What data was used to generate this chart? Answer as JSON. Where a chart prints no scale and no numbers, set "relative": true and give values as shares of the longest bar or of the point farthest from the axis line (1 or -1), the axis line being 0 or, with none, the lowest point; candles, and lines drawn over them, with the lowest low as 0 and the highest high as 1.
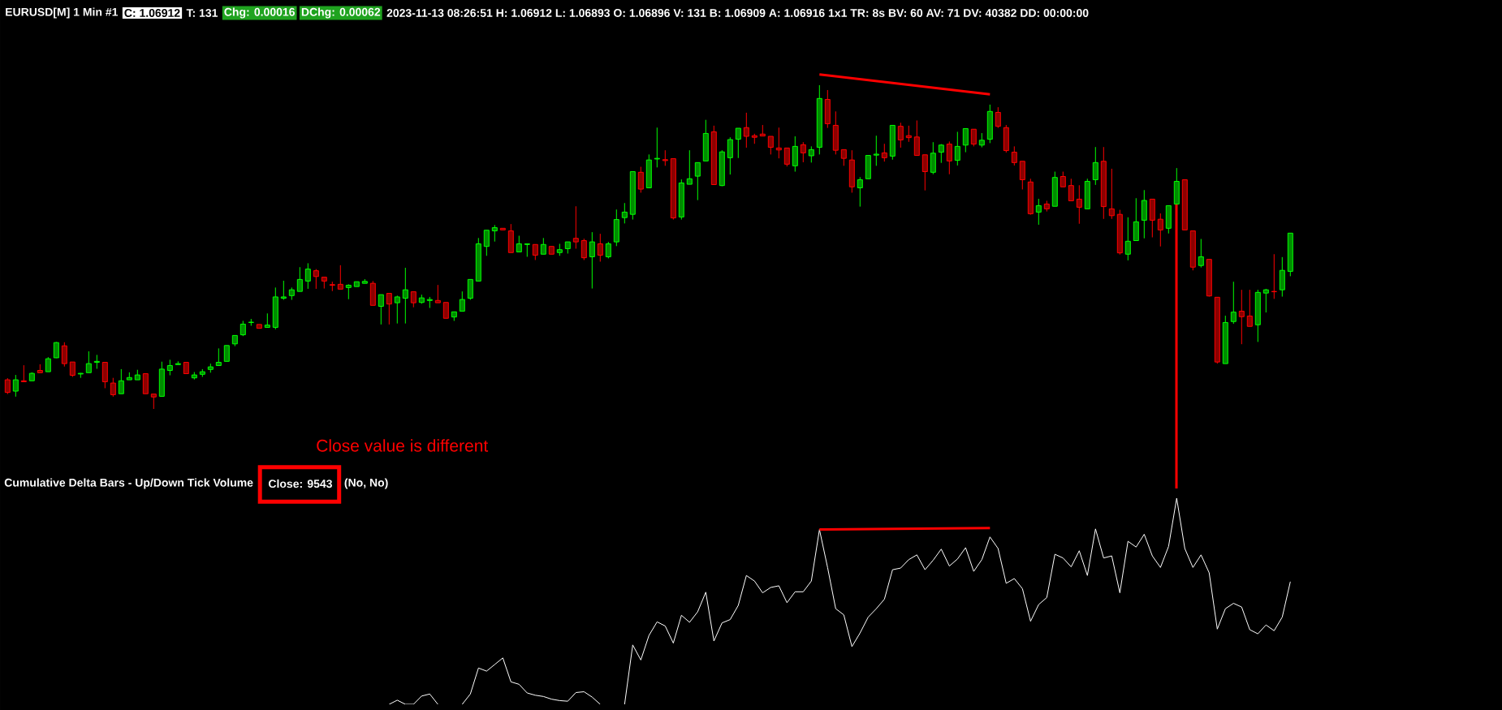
{
  "chart_data": [
    {
      "type": "candlestick",
      "title": "EURUSD[M] 1 Min #1",
      "relative": true,
      "annotations": [
        "C: 1.06912",
        "T: 131",
        "Chg: 0.00016",
        "DChg: 0.00062",
        "2023-11-13 08:26:51 H: 1.06912 L: 1.06893 O: 1.06896 V: 131 B: 1.06909 A: 1.06916 1x1 TR: 8s BV: 60 AV: 71 DV: 40382 DD: 00:00:00"
      ],
      "categories": [
        null,
        null,
        null,
        null,
        null,
        null,
        null,
        null,
        null,
        null,
        null,
        null,
        null,
        null,
        null,
        null,
        null,
        null,
        null,
        null,
        null,
        null,
        null,
        null,
        null,
        null,
        null,
        null,
        null,
        null,
        null,
        null,
        null,
        null,
        null,
        null,
        null,
        null,
        null,
        null,
        null,
        null,
        null,
        null,
        null,
        null,
        null,
        null,
        null,
        null,
        null,
        null,
        null,
        null,
        null,
        null,
        null,
        null,
        null,
        null,
        null,
        null,
        null,
        null,
        null,
        null,
        null,
        null,
        null,
        null,
        null,
        null,
        null,
        null,
        null,
        null,
        null,
        null,
        null,
        null,
        null,
        null,
        null,
        null,
        null,
        null,
        null,
        null,
        null,
        null,
        null,
        null,
        null,
        null,
        null,
        null,
        null,
        null,
        null,
        null,
        null,
        null,
        null,
        null,
        null,
        null,
        null,
        null,
        null,
        null,
        null,
        null,
        null,
        null,
        null,
        null,
        null,
        null,
        null,
        null,
        null,
        null,
        null,
        null,
        null,
        null,
        null,
        null,
        null,
        null,
        null,
        null,
        null,
        null,
        null,
        null,
        null,
        null,
        null,
        null,
        null,
        null,
        null,
        null,
        null,
        null,
        null,
        null,
        null,
        null,
        null,
        null,
        null,
        null,
        null,
        null,
        null,
        null,
        null
      ],
      "ohlc": [
        [
          0.09,
          0.095,
          0.046,
          0.051
        ],
        [
          0.055,
          0.105,
          0.038,
          0.09
        ],
        [
          0.087,
          0.135,
          0.084,
          0.084
        ],
        [
          0.087,
          0.113,
          0.087,
          0.11
        ],
        [
          0.119,
          0.138,
          0.112,
          0.112
        ],
        [
          0.115,
          0.16,
          0.115,
          0.155
        ],
        [
          0.158,
          0.207,
          0.157,
          0.205
        ],
        [
          0.195,
          0.206,
          0.131,
          0.14
        ],
        [
          0.145,
          0.145,
          0.099,
          0.104
        ],
        [
          0.108,
          0.111,
          0.096,
          0.11
        ],
        [
          0.112,
          0.178,
          0.112,
          0.14
        ],
        [
          0.144,
          0.167,
          0.124,
          0.147
        ],
        [
          0.144,
          0.144,
          0.064,
          0.084
        ],
        [
          0.08,
          0.096,
          0.038,
          0.044
        ],
        [
          0.047,
          0.123,
          0.047,
          0.087
        ],
        [
          0.09,
          0.113,
          0.09,
          0.097
        ],
        [
          0.09,
          0.121,
          0.09,
          0.105
        ],
        [
          0.109,
          0.109,
          0.047,
          0.047
        ],
        [
          0.046,
          0.046,
          0,
          0.037
        ],
        [
          0.039,
          0.146,
          0.039,
          0.123
        ],
        [
          0.119,
          0.152,
          0.104,
          0.134
        ],
        [
          0.137,
          0.147,
          0.137,
          0.14
        ],
        [
          0.144,
          0.144,
          0.109,
          0.109
        ],
        [
          0.096,
          0.114,
          0.091,
          0.105
        ],
        [
          0.107,
          0.123,
          0.099,
          0.115
        ],
        [
          0.122,
          0.14,
          0.112,
          0.13
        ],
        [
          0.134,
          0.187,
          0.134,
          0.144
        ],
        [
          0.147,
          0.196,
          0.147,
          0.196
        ],
        [
          0.201,
          0.227,
          0.194,
          0.227
        ],
        [
          0.229,
          0.272,
          0.225,
          0.262
        ],
        [
          0.267,
          0.278,
          0.257,
          0.268
        ],
        [
          0.261,
          0.261,
          0.249,
          0.249
        ],
        [
          0.252,
          0.295,
          0.252,
          0.259
        ],
        [
          0.252,
          0.375,
          0.246,
          0.346
        ],
        [
          0.342,
          0.396,
          0.337,
          0.346
        ],
        [
          0.35,
          0.375,
          0.337,
          0.368
        ],
        [
          0.363,
          0.438,
          0.363,
          0.4
        ],
        [
          0.395,
          0.45,
          0.371,
          0.432
        ],
        [
          0.427,
          0.432,
          0.371,
          0.409
        ],
        [
          0.407,
          0.407,
          0.372,
          0.395
        ],
        [
          0.384,
          0.393,
          0.364,
          0.382
        ],
        [
          0.385,
          0.444,
          0.37,
          0.37
        ],
        [
          0.375,
          0.385,
          0.339,
          0.382
        ],
        [
          0.378,
          0.393,
          0.378,
          0.393
        ],
        [
          0.388,
          0.401,
          0.388,
          0.394
        ],
        [
          0.388,
          0.395,
          0.32,
          0.32
        ],
        [
          0.317,
          0.353,
          0.261,
          0.353
        ],
        [
          0.357,
          0.357,
          0.261,
          0.324
        ],
        [
          0.328,
          0.35,
          0.264,
          0.346
        ],
        [
          0.342,
          0.436,
          0.264,
          0.368
        ],
        [
          0.362,
          0.362,
          0.314,
          0.328
        ],
        [
          0.329,
          0.353,
          0.325,
          0.343
        ],
        [
          0.335,
          0.346,
          0.312,
          0.338
        ],
        [
          0.335,
          0.383,
          0.328,
          0.328
        ],
        [
          0.329,
          0.329,
          0.28,
          0.28
        ],
        [
          0.284,
          0.3,
          0.272,
          0.3
        ],
        [
          0.302,
          0.363,
          0.302,
          0.338
        ],
        [
          0.342,
          0.4,
          0.337,
          0.4
        ],
        [
          0.395,
          0.528,
          0.395,
          0.51
        ],
        [
          0.502,
          0.552,
          0.473,
          0.552
        ],
        [
          0.55,
          0.568,
          0.517,
          0.56
        ],
        [
          0.558,
          0.558,
          0.553,
          0.553
        ],
        [
          0.55,
          0.571,
          0.483,
          0.483
        ],
        [
          0.485,
          0.535,
          0.485,
          0.51
        ],
        [
          0.508,
          0.51,
          0.47,
          0.51
        ],
        [
          0.508,
          0.508,
          0.46,
          0.475
        ],
        [
          0.478,
          0.528,
          0.478,
          0.508
        ],
        [
          0.502,
          0.502,
          0.478,
          0.478
        ],
        [
          0.483,
          0.51,
          0.473,
          0.492
        ],
        [
          0.495,
          0.516,
          0.48,
          0.516
        ],
        [
          0.527,
          0.626,
          0.495,
          0.516
        ],
        [
          0.52,
          0.526,
          0.46,
          0.467
        ],
        [
          0.47,
          0.546,
          0.372,
          0.516
        ],
        [
          0.51,
          0.541,
          0.455,
          0.475
        ],
        [
          0.47,
          0.516,
          0.465,
          0.51
        ],
        [
          0.516,
          0.616,
          0.503,
          0.585
        ],
        [
          0.591,
          0.636,
          0.573,
          0.608
        ],
        [
          0.601,
          0.733,
          0.585,
          0.733
        ],
        [
          0.731,
          0.748,
          0.668,
          0.679
        ],
        [
          0.683,
          0.786,
          0.683,
          0.769
        ],
        [
          0.772,
          0.869,
          0.746,
          0.774
        ],
        [
          0.77,
          0.799,
          0.751,
          0.767
        ],
        [
          0.773,
          0.773,
          0.585,
          0.59
        ],
        [
          0.593,
          0.709,
          0.585,
          0.698
        ],
        [
          0.694,
          0.799,
          0.694,
          0.711
        ],
        [
          0.719,
          0.761,
          0.645,
          0.761
        ],
        [
          0.766,
          0.893,
          0.766,
          0.851
        ],
        [
          0.856,
          0.875,
          0.693,
          0.693
        ],
        [
          0.69,
          0.799,
          0.688,
          0.794
        ],
        [
          0.776,
          0.839,
          0.724,
          0.832
        ],
        [
          0.833,
          0.867,
          0.775,
          0.867
        ],
        [
          0.869,
          0.915,
          0.807,
          0.842
        ],
        [
          0.844,
          0.85,
          0.819,
          0.839
        ],
        [
          0.849,
          0.877,
          0.843,
          0.843
        ],
        [
          0.842,
          0.842,
          0.786,
          0.808
        ],
        [
          0.806,
          0.869,
          0.774,
          0.8
        ],
        [
          0.806,
          0.806,
          0.749,
          0.756
        ],
        [
          0.751,
          0.842,
          0.733,
          0.811
        ],
        [
          0.816,
          0.824,
          0.762,
          0.791
        ],
        [
          0.782,
          0.811,
          0.761,
          0.801
        ],
        [
          0.808,
          1,
          0.786,
          0.959
        ],
        [
          0.956,
          0.985,
          0.868,
          0.881
        ],
        [
          0.876,
          0.919,
          0.786,
          0.799
        ],
        [
          0.801,
          0.801,
          0.751,
          0.774
        ],
        [
          0.769,
          0.799,
          0.668,
          0.686
        ],
        [
          0.683,
          0.716,
          0.625,
          0.708
        ],
        [
          0.711,
          0.783,
          0.711,
          0.783
        ],
        [
          0.784,
          0.844,
          0.751,
          0.787
        ],
        [
          0.791,
          0.819,
          0.764,
          0.776
        ],
        [
          0.781,
          0.876,
          0.77,
          0.876
        ],
        [
          0.873,
          0.884,
          0.807,
          0.831
        ],
        [
          0.844,
          0.875,
          0.825,
          0.838
        ],
        [
          0.84,
          0.891,
          0.783,
          0.783
        ],
        [
          0.785,
          0.785,
          0.675,
          0.733
        ],
        [
          0.731,
          0.824,
          0.725,
          0.79
        ],
        [
          0.793,
          0.818,
          0.76,
          0.815
        ],
        [
          0.818,
          0.826,
          0.725,
          0.766
        ],
        [
          0.768,
          0.856,
          0.752,
          0.811
        ],
        [
          0.815,
          0.866,
          0.793,
          0.866
        ],
        [
          0.864,
          0.864,
          0.811,
          0.818
        ],
        [
          0.815,
          0.852,
          0.808,
          0.83
        ],
        [
          0.833,
          0.94,
          0.821,
          0.919
        ],
        [
          0.916,
          0.932,
          0.868,
          0.873
        ],
        [
          0.869,
          0.877,
          0.792,
          0.798
        ],
        [
          0.793,
          0.811,
          0.752,
          0.761
        ],
        [
          0.765,
          0.765,
          0.678,
          0.708
        ],
        [
          0.701,
          0.711,
          0.6,
          0.603
        ],
        [
          0.608,
          0.649,
          0.569,
          0.628
        ],
        [
          0.633,
          0.643,
          0.61,
          0.618
        ],
        [
          0.626,
          0.733,
          0.626,
          0.715
        ],
        [
          0.718,
          0.733,
          0.686,
          0.686
        ],
        [
          0.69,
          0.711,
          0.643,
          0.643
        ],
        [
          0.648,
          0.691,
          0.572,
          0.623
        ],
        [
          0.618,
          0.711,
          0.618,
          0.703
        ],
        [
          0.708,
          0.809,
          0.692,
          0.761
        ],
        [
          0.765,
          0.809,
          0.587,
          0.625
        ],
        [
          0.618,
          0.742,
          0.587,
          0.597
        ],
        [
          0.601,
          0.615,
          0.477,
          0.482
        ],
        [
          0.478,
          0.592,
          0.459,
          0.518
        ],
        [
          0.52,
          0.651,
          0.52,
          0.578
        ],
        [
          0.583,
          0.676,
          0.527,
          0.644
        ],
        [
          0.648,
          0.648,
          0.53,
          0.583
        ],
        [
          0.586,
          0.604,
          0.502,
          0.553
        ],
        [
          0.558,
          0.628,
          0.542,
          0.628
        ],
        [
          0.633,
          0.744,
          0.633,
          0.703
        ],
        [
          0.708,
          0.708,
          0.553,
          0.553
        ],
        [
          0.55,
          0.55,
          0.428,
          0.438
        ],
        [
          0.443,
          0.525,
          0.437,
          0.47
        ],
        [
          0.462,
          0.462,
          0.347,
          0.349
        ],
        [
          0.345,
          0.345,
          0.14,
          0.145
        ],
        [
          0.14,
          0.288,
          0.14,
          0.267
        ],
        [
          0.27,
          0.393,
          0.263,
          0.299
        ],
        [
          0.302,
          0.368,
          0.2,
          0.285
        ],
        [
          0.287,
          0.368,
          0.255,
          0.255
        ],
        [
          0.26,
          0.368,
          0.207,
          0.36
        ],
        [
          0.358,
          0.371,
          0.298,
          0.368
        ],
        [
          0.363,
          0.478,
          0.34,
          0.362
        ],
        [
          0.368,
          0.469,
          0.347,
          0.428
        ],
        [
          0.425,
          0.543,
          0.41,
          0.543
        ]
      ],
      "colors": [
        "#ff0000",
        "#00ff00",
        "#ff0000",
        "#00ff00",
        "#ff0000",
        "#00ff00",
        "#00ff00",
        "#ff0000",
        "#ff0000",
        "#00ff00",
        "#00ff00",
        "#00ff00",
        "#ff0000",
        "#ff0000",
        "#00ff00",
        "#00ff00",
        "#00ff00",
        "#ff0000",
        "#ff0000",
        "#00ff00",
        "#00ff00",
        "#00ff00",
        "#ff0000",
        "#00ff00",
        "#00ff00",
        "#00ff00",
        "#00ff00",
        "#00ff00",
        "#00ff00",
        "#00ff00",
        "#00ff00",
        "#ff0000",
        "#00ff00",
        "#00ff00",
        "#00ff00",
        "#00ff00",
        "#00ff00",
        "#00ff00",
        "#ff0000",
        "#ff0000",
        "#ff0000",
        "#ff0000",
        "#00ff00",
        "#00ff00",
        "#00ff00",
        "#ff0000",
        "#00ff00",
        "#ff0000",
        "#00ff00",
        "#00ff00",
        "#ff0000",
        "#00ff00",
        "#00ff00",
        "#ff0000",
        "#ff0000",
        "#00ff00",
        "#00ff00",
        "#00ff00",
        "#00ff00",
        "#00ff00",
        "#00ff00",
        "#ff0000",
        "#ff0000",
        "#00ff00",
        "#00ff00",
        "#ff0000",
        "#00ff00",
        "#ff0000",
        "#00ff00",
        "#00ff00",
        "#ff0000",
        "#ff0000",
        "#00ff00",
        "#ff0000",
        "#00ff00",
        "#00ff00",
        "#00ff00",
        "#00ff00",
        "#ff0000",
        "#00ff00",
        "#00ff00",
        "#ff0000",
        "#ff0000",
        "#00ff00",
        "#00ff00",
        "#00ff00",
        "#00ff00",
        "#ff0000",
        "#00ff00",
        "#00ff00",
        "#00ff00",
        "#ff0000",
        "#ff0000",
        "#ff0000",
        "#ff0000",
        "#ff0000",
        "#ff0000",
        "#00ff00",
        "#ff0000",
        "#00ff00",
        "#00ff00",
        "#ff0000",
        "#ff0000",
        "#ff0000",
        "#ff0000",
        "#00ff00",
        "#00ff00",
        "#00ff00",
        "#ff0000",
        "#00ff00",
        "#ff0000",
        "#ff0000",
        "#ff0000",
        "#ff0000",
        "#00ff00",
        "#00ff00",
        "#ff0000",
        "#00ff00",
        "#00ff00",
        "#ff0000",
        "#00ff00",
        "#00ff00",
        "#ff0000",
        "#ff0000",
        "#ff0000",
        "#ff0000",
        "#ff0000",
        "#00ff00",
        "#ff0000",
        "#00ff00",
        "#ff0000",
        "#ff0000",
        "#ff0000",
        "#00ff00",
        "#00ff00",
        "#ff0000",
        "#ff0000",
        "#ff0000",
        "#00ff00",
        "#00ff00",
        "#00ff00",
        "#ff0000",
        "#ff0000",
        "#00ff00",
        "#00ff00",
        "#ff0000",
        "#ff0000",
        "#00ff00",
        "#ff0000",
        "#ff0000",
        "#00ff00",
        "#00ff00",
        "#ff0000",
        "#ff0000",
        "#00ff00",
        "#00ff00",
        "#ff0000",
        "#00ff00",
        "#00ff00"
      ],
      "series": [
        {
          "type": "line",
          "color": "#ff0000",
          "values": [
            null,
            null,
            null,
            null,
            null,
            null,
            null,
            null,
            null,
            null,
            null,
            null,
            null,
            null,
            null,
            null,
            null,
            null,
            null,
            null,
            null,
            null,
            null,
            null,
            null,
            null,
            null,
            null,
            null,
            null,
            null,
            null,
            null,
            null,
            null,
            null,
            null,
            null,
            null,
            null,
            null,
            null,
            null,
            null,
            null,
            null,
            null,
            null,
            null,
            null,
            null,
            null,
            null,
            null,
            null,
            null,
            null,
            null,
            null,
            null,
            null,
            null,
            null,
            null,
            null,
            null,
            null,
            null,
            null,
            null,
            null,
            null,
            null,
            null,
            null,
            null,
            null,
            null,
            null,
            null,
            null,
            null,
            null,
            null,
            null,
            null,
            null,
            null,
            null,
            null,
            null,
            null,
            null,
            null,
            null,
            null,
            null,
            null,
            null,
            null,
            1.033,
            null,
            null,
            null,
            null,
            null,
            null,
            null,
            null,
            null,
            null,
            null,
            null,
            null,
            null,
            null,
            null,
            null,
            null,
            null,
            null,
            0.972,
            null,
            null,
            null,
            null,
            null,
            null,
            null,
            null,
            null,
            null,
            null,
            null,
            null,
            null,
            null,
            null,
            null,
            null,
            null,
            null,
            null,
            null,
            null,
            null,
            null,
            null,
            null,
            null,
            null,
            null,
            null,
            null,
            null,
            null,
            null,
            null,
            null
          ]
        }
      ]
    },
    {
      "type": "line",
      "title": "Cumulative Delta Bars - Up/Down Tick Volume",
      "relative": true,
      "annotations": [
        "Close: 9543",
        "(No, No)",
        "Close value is different"
      ],
      "categories": [
        null,
        null,
        null,
        null,
        null,
        null,
        null,
        null,
        null,
        null,
        null,
        null,
        null,
        null,
        null,
        null,
        null,
        null,
        null,
        null,
        null,
        null,
        null,
        null,
        null,
        null,
        null,
        null,
        null,
        null,
        null,
        null,
        null,
        null,
        null,
        null,
        null,
        null,
        null,
        null,
        null,
        null,
        null,
        null,
        null,
        null,
        null,
        null,
        null,
        null,
        null,
        null,
        null,
        null,
        null,
        null,
        null,
        null,
        null,
        null,
        null,
        null,
        null,
        null,
        null,
        null,
        null,
        null,
        null,
        null,
        null,
        null,
        null,
        null,
        null,
        null,
        null,
        null,
        null,
        null,
        null,
        null,
        null,
        null,
        null,
        null,
        null,
        null,
        null,
        null,
        null,
        null,
        null,
        null,
        null,
        null,
        null,
        null,
        null,
        null,
        null,
        null,
        null,
        null,
        null,
        null,
        null,
        null,
        null,
        null,
        null,
        null,
        null,
        null,
        null,
        null,
        null,
        null,
        null,
        null,
        null,
        null,
        null,
        null,
        null,
        null,
        null,
        null,
        null,
        null,
        null,
        null,
        null,
        null,
        null,
        null,
        null,
        null,
        null,
        null,
        null,
        null,
        null,
        null,
        null,
        null,
        null,
        null,
        null,
        null,
        null,
        null,
        null,
        null,
        null,
        null,
        null,
        null,
        null
      ],
      "series": [
        {
          "color": "#ffffff",
          "values": [
            null,
            null,
            null,
            null,
            null,
            null,
            null,
            null,
            null,
            null,
            null,
            null,
            null,
            null,
            null,
            null,
            null,
            null,
            null,
            null,
            null,
            null,
            null,
            null,
            null,
            null,
            null,
            null,
            null,
            null,
            null,
            null,
            null,
            null,
            null,
            null,
            null,
            null,
            null,
            null,
            null,
            null,
            null,
            null,
            null,
            null,
            null,
            0,
            0.02,
            0,
            0,
            0.04,
            0.05,
            0,
            null,
            null,
            0,
            0.05,
            0.176,
            0.161,
            0.193,
            0.225,
            0.109,
            0.097,
            0.055,
            0.044,
            0.038,
            0.025,
            0.018,
            0.015,
            0.057,
            0.061,
            0.035,
            0,
            null,
            null,
            0,
            0.288,
            0.215,
            0.334,
            0.4,
            0.38,
            0.297,
            0.432,
            0.398,
            0.449,
            0.544,
            0.307,
            0.395,
            0.411,
            0.48,
            0.625,
            0.598,
            0.541,
            0.567,
            0.575,
            0.493,
            0.546,
            0.546,
            0.598,
            0.848,
            0.664,
            0.464,
            0.434,
            0.28,
            0.346,
            0.423,
            0.464,
            0.51,
            0.653,
            0.661,
            0.702,
            0.725,
            0.653,
            0.699,
            0.753,
            0.671,
            0.705,
            0.76,
            0.645,
            0.702,
            0.812,
            0.756,
            0.587,
            0.61,
            0.561,
            0.403,
            0.484,
            0.518,
            0.728,
            0.71,
            0.667,
            0.745,
            0.625,
            0.851,
            0.71,
            0.72,
            0.541,
            0.791,
            0.763,
            0.825,
            0.72,
            0.664,
            0.766,
            1,
            0.756,
            0.664,
            0.725,
            0.638,
            0.365,
            0.464,
            0.49,
            0.472,
            0.362,
            0.342,
            0.385,
            0.357,
            0.423,
            0.595
          ]
        },
        {
          "type": "line",
          "color": "#ff0000",
          "values": [
            null,
            null,
            null,
            null,
            null,
            null,
            null,
            null,
            null,
            null,
            null,
            null,
            null,
            null,
            null,
            null,
            null,
            null,
            null,
            null,
            null,
            null,
            null,
            null,
            null,
            null,
            null,
            null,
            null,
            null,
            null,
            null,
            null,
            null,
            null,
            null,
            null,
            null,
            null,
            null,
            null,
            null,
            null,
            null,
            null,
            null,
            null,
            null,
            null,
            null,
            null,
            null,
            null,
            null,
            null,
            null,
            null,
            null,
            null,
            null,
            null,
            null,
            null,
            null,
            null,
            null,
            null,
            null,
            null,
            null,
            null,
            null,
            null,
            null,
            null,
            null,
            null,
            null,
            null,
            null,
            null,
            null,
            null,
            null,
            null,
            null,
            null,
            null,
            null,
            null,
            null,
            null,
            null,
            null,
            null,
            null,
            null,
            null,
            null,
            null,
            0.848,
            null,
            null,
            null,
            null,
            null,
            null,
            null,
            null,
            null,
            null,
            null,
            null,
            null,
            null,
            null,
            null,
            null,
            null,
            null,
            null,
            0.855,
            null,
            null,
            null,
            null,
            null,
            null,
            null,
            null,
            null,
            null,
            null,
            null,
            null,
            null,
            null,
            null,
            null,
            null,
            null,
            null,
            null,
            null,
            null,
            null,
            null,
            null,
            null,
            null,
            null,
            null,
            null,
            null,
            null,
            null,
            null,
            null,
            null
          ]
        }
      ]
    }
  ]
}
